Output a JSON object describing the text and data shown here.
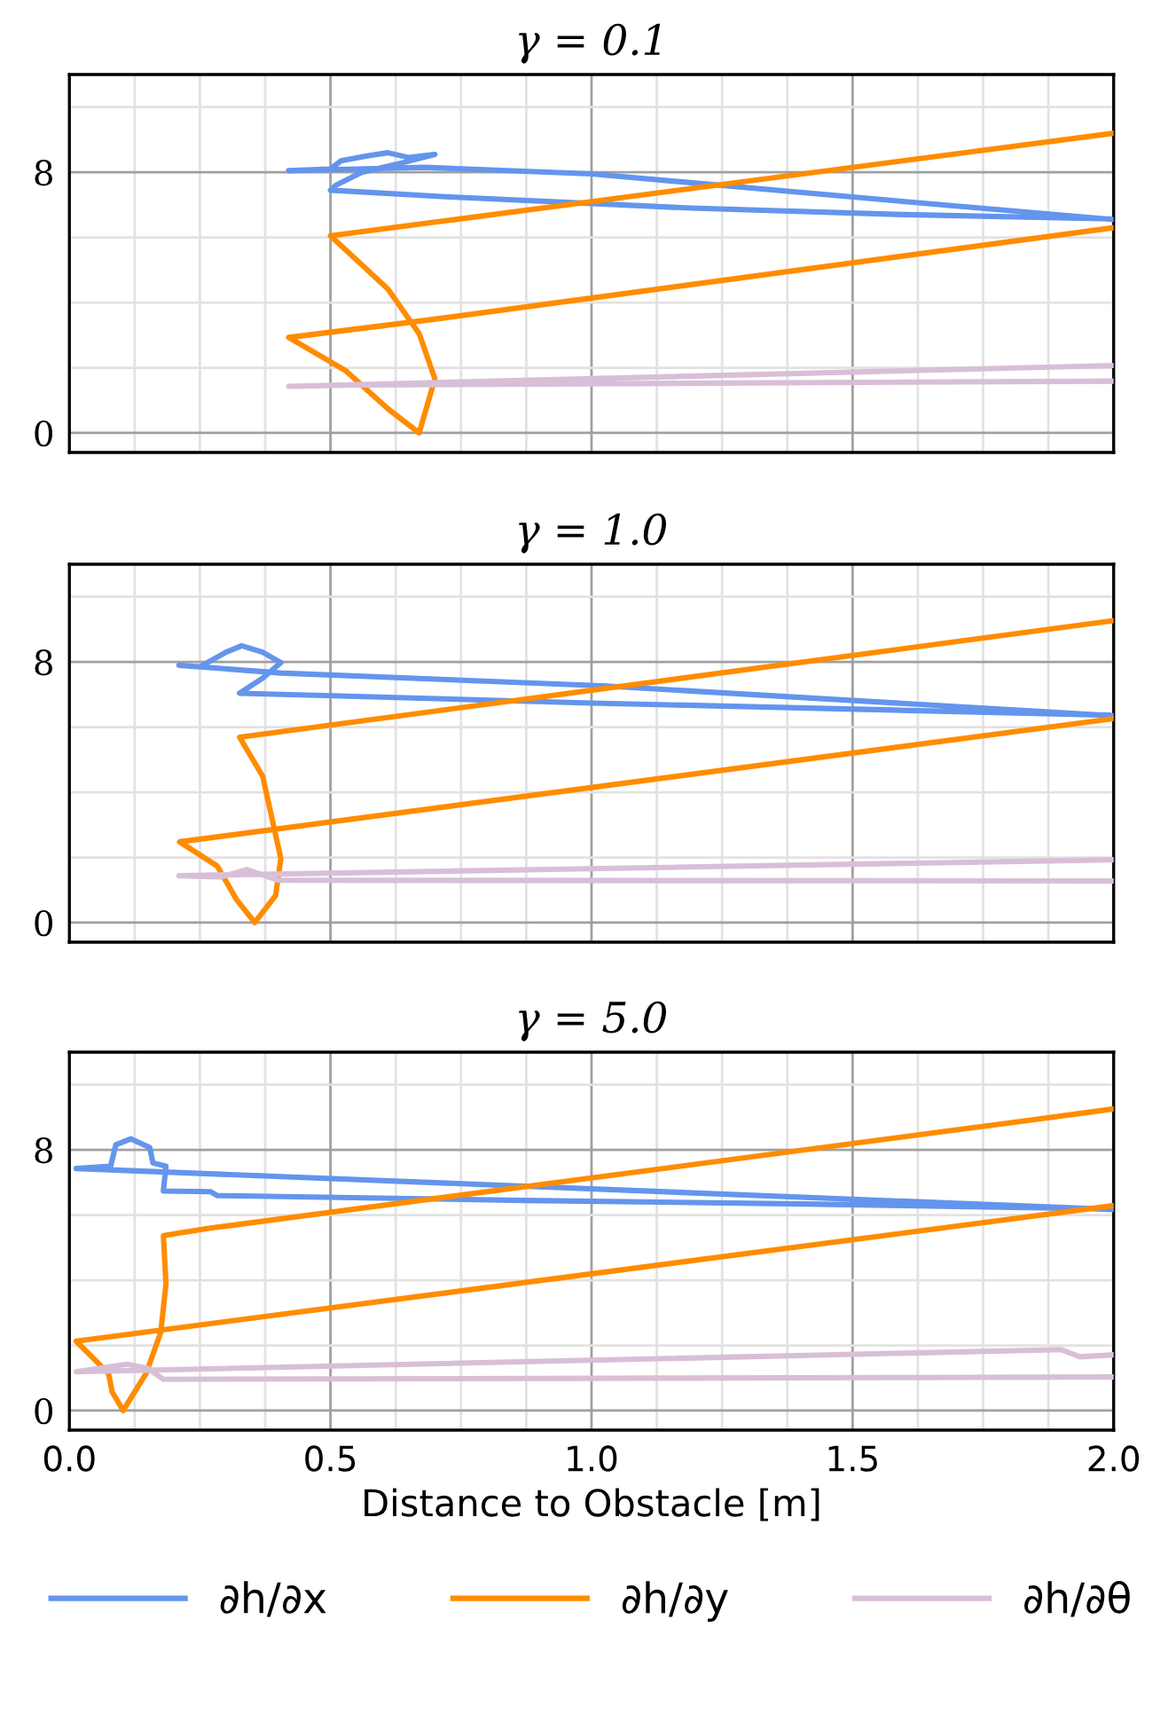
{
  "chart_data": [
    {
      "type": "line",
      "title": "γ = 0.1",
      "xlim": [
        0,
        2.0
      ],
      "ylim": [
        -0.6,
        11
      ],
      "xticks": [
        0.0,
        {
          "value": 0.125,
          "label": null
        },
        {
          "value": 0.25,
          "label": null
        },
        {
          "value": 0.375,
          "label": null
        },
        0.5,
        {
          "value": 0.625,
          "label": null
        },
        {
          "value": 0.75,
          "label": null
        },
        {
          "value": 0.875,
          "label": null
        },
        1.0,
        {
          "value": 1.125,
          "label": null
        },
        {
          "value": 1.25,
          "label": null
        },
        {
          "value": 1.375,
          "label": null
        },
        1.5,
        {
          "value": 1.625,
          "label": null
        },
        {
          "value": 1.75,
          "label": null
        },
        {
          "value": 1.875,
          "label": null
        },
        2.0
      ],
      "yticks": [
        0,
        {
          "value": 2,
          "label": null
        },
        {
          "value": 4,
          "label": null
        },
        {
          "value": 6,
          "label": null
        },
        8,
        {
          "value": 10,
          "label": null
        }
      ],
      "grid": true,
      "tick_labels": "y",
      "series": [
        {
          "color": "#6495ed",
          "x": [
            2.0,
            1.6,
            1.0,
            0.68,
            0.55,
            0.42,
            0.5,
            0.52,
            0.57,
            0.61,
            0.65,
            0.7,
            0.64,
            0.56,
            0.51,
            0.5,
            0.72,
            1.19,
            1.6,
            1.99
          ],
          "values": [
            6.55,
            7.1,
            7.95,
            8.15,
            8.1,
            8.05,
            8.1,
            8.35,
            8.5,
            8.6,
            8.45,
            8.55,
            8.3,
            8.0,
            7.6,
            7.45,
            7.25,
            6.9,
            6.7,
            6.57
          ]
        },
        {
          "color": "#ff8c00",
          "x": [
            2.0,
            0.5,
            0.61,
            0.67,
            0.7,
            0.67,
            0.61,
            0.53,
            0.42,
            0.685,
            2.0
          ],
          "values": [
            9.2,
            6.05,
            4.42,
            3.04,
            1.66,
            0.0,
            0.74,
            1.9,
            2.93,
            3.46,
            6.3
          ]
        },
        {
          "color": "#d8bfd8",
          "x": [
            2.0,
            0.42,
            0.55,
            2.0
          ],
          "values": [
            2.07,
            1.43,
            1.47,
            1.59
          ]
        }
      ]
    },
    {
      "type": "line",
      "title": "γ = 1.0",
      "xlim": [
        0,
        2.0
      ],
      "ylim": [
        -0.6,
        11
      ],
      "xticks": [
        0.0,
        {
          "value": 0.125,
          "label": null
        },
        {
          "value": 0.25,
          "label": null
        },
        {
          "value": 0.375,
          "label": null
        },
        0.5,
        {
          "value": 0.625,
          "label": null
        },
        {
          "value": 0.75,
          "label": null
        },
        {
          "value": 0.875,
          "label": null
        },
        1.0,
        {
          "value": 1.125,
          "label": null
        },
        {
          "value": 1.25,
          "label": null
        },
        {
          "value": 1.375,
          "label": null
        },
        1.5,
        {
          "value": 1.625,
          "label": null
        },
        {
          "value": 1.75,
          "label": null
        },
        {
          "value": 1.875,
          "label": null
        },
        2.0
      ],
      "yticks": [
        0,
        {
          "value": 2,
          "label": null
        },
        {
          "value": 4,
          "label": null
        },
        {
          "value": 6,
          "label": null
        },
        8,
        {
          "value": 10,
          "label": null
        }
      ],
      "grid": true,
      "tick_labels": "y",
      "series": [
        {
          "color": "#6495ed",
          "x": [
            2.0,
            1.02,
            0.405,
            0.21,
            0.25,
            0.3,
            0.33,
            0.37,
            0.405,
            0.37,
            0.326,
            0.49,
            1.0,
            1.99
          ],
          "values": [
            6.35,
            7.27,
            7.66,
            7.9,
            7.85,
            8.3,
            8.5,
            8.3,
            7.98,
            7.5,
            7.04,
            6.97,
            6.74,
            6.37
          ]
        },
        {
          "color": "#ff8c00",
          "x": [
            2.0,
            0.326,
            0.37,
            0.405,
            0.395,
            0.355,
            0.32,
            0.283,
            0.211,
            2.0
          ],
          "values": [
            9.27,
            5.69,
            4.5,
            1.97,
            0.83,
            0.0,
            0.71,
            1.74,
            2.48,
            6.26
          ]
        },
        {
          "color": "#d8bfd8",
          "x": [
            2.0,
            0.21,
            0.29,
            0.34,
            0.4,
            2.0
          ],
          "values": [
            1.93,
            1.44,
            1.4,
            1.63,
            1.3,
            1.28
          ]
        }
      ]
    },
    {
      "type": "line",
      "title": "γ = 5.0",
      "xlabel": "Distance to Obstacle [m]",
      "xlim": [
        0,
        2.0
      ],
      "ylim": [
        -0.6,
        11
      ],
      "xticks": [
        {
          "value": 0,
          "label": "0.0"
        },
        {
          "value": 0.125,
          "label": null
        },
        {
          "value": 0.25,
          "label": null
        },
        {
          "value": 0.375,
          "label": null
        },
        0.5,
        {
          "value": 0.625,
          "label": null
        },
        {
          "value": 0.75,
          "label": null
        },
        {
          "value": 0.875,
          "label": null
        },
        {
          "value": 1,
          "label": "1.0"
        },
        {
          "value": 1.125,
          "label": null
        },
        {
          "value": 1.25,
          "label": null
        },
        {
          "value": 1.375,
          "label": null
        },
        1.5,
        {
          "value": 1.625,
          "label": null
        },
        {
          "value": 1.75,
          "label": null
        },
        {
          "value": 1.875,
          "label": null
        },
        {
          "value": 2,
          "label": "2.0"
        }
      ],
      "yticks": [
        0,
        {
          "value": 2,
          "label": null
        },
        {
          "value": 4,
          "label": null
        },
        {
          "value": 6,
          "label": null
        },
        8,
        {
          "value": 10,
          "label": null
        }
      ],
      "grid": true,
      "legend": "bottom",
      "series": [
        {
          "name": "∂h/∂x",
          "color": "#6495ed",
          "x": [
            2.0,
            0.013,
            0.079,
            0.089,
            0.118,
            0.154,
            0.16,
            0.185,
            0.18,
            0.27,
            0.283,
            0.87,
            1.41,
            1.99
          ],
          "values": [
            6.17,
            7.43,
            7.5,
            8.16,
            8.34,
            8.07,
            7.6,
            7.5,
            6.74,
            6.72,
            6.6,
            6.45,
            6.34,
            6.19
          ]
        },
        {
          "name": "∂h/∂y",
          "color": "#ff8c00",
          "x": [
            2.0,
            1.81,
            0.27,
            0.18,
            0.185,
            0.175,
            0.147,
            0.103,
            0.082,
            0.075,
            0.013,
            2.0
          ],
          "values": [
            9.26,
            8.85,
            5.6,
            5.37,
            3.89,
            2.4,
            1.14,
            0.0,
            0.57,
            1.14,
            2.13,
            6.29
          ]
        },
        {
          "name": "∂h/∂θ",
          "color": "#d8bfd8",
          "x": [
            2.0,
            0.18,
            0.15,
            0.11,
            0.013,
            1.9,
            1.935,
            2.0
          ],
          "values": [
            1.03,
            0.96,
            1.3,
            1.42,
            1.19,
            1.87,
            1.65,
            1.71
          ]
        }
      ]
    }
  ]
}
